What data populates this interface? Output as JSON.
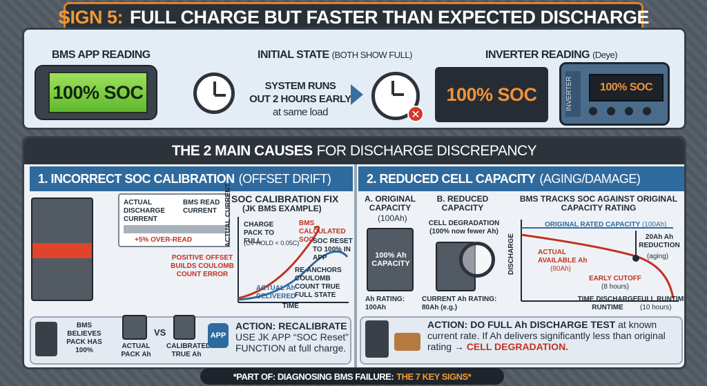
{
  "title": {
    "prefix": "SIGN 5:",
    "main": "FULL CHARGE BUT FASTER THAN EXPECTED DISCHARGE"
  },
  "top": {
    "bms_label": "BMS APP READING",
    "bms_value": "100% SOC",
    "initial_label": "INITIAL STATE",
    "initial_sub": "(BOTH SHOW FULL)",
    "runs_line1": "SYSTEM RUNS",
    "runs_line2": "OUT 2 HOURS EARLY",
    "runs_line3": "at same load",
    "inverter_label": "INVERTER READING",
    "inverter_sub": "(Deye)",
    "inverter_value": "100% SOC",
    "inverter_side": "INVERTER",
    "inverter_display": "100% SOC"
  },
  "causes": {
    "header_bold": "THE 2 MAIN CAUSES",
    "header_rest": "FOR DISCHARGE DISCREPANCY",
    "left": {
      "heading": "1. INCORRECT SOC CALIBRATION",
      "heading_sub": "(OFFSET DRIFT)",
      "actual_label": "ACTUAL DISCHARGE CURRENT",
      "read_label": "BMS READ CURRENT",
      "overread": "+5% OVER-READ",
      "positive": "POSITIVE OFFSET BUILDS COULOMB COUNT ERROR",
      "fix_title": "SOC CALIBRATION FIX",
      "fix_sub": "(JK BMS EXAMPLE)",
      "charge_pack": "CHARGE PACK TO FULL",
      "cv_hold": "(CV HOLD < 0.05C)",
      "bms_calc": "BMS CALCULATED SOC",
      "soc_reset": "SOC RESET TO 100% IN APP",
      "reanchor": "RE-ANCHORS COULOMB COUNT TRUE FULL STATE",
      "actual_ah": "ACTUAL Ah DELIVERED",
      "y_axis": "ACTUAL CURRENT",
      "x_axis": "TIME",
      "believes": "BMS BELIEVES PACK HAS 100%",
      "actual_pack": "ACTUAL PACK Ah",
      "vs": "VS",
      "calibrated": "CALIBRATED TRUE Ah",
      "app_icon": "APP",
      "action_bold": "ACTION: RECALIBRATE",
      "action_text": "USE JK APP “SOC Reset” FUNCTION at full charge."
    },
    "right": {
      "heading": "2. REDUCED CELL CAPACITY",
      "heading_sub": "(AGING/DAMAGE)",
      "a_title": "A. ORIGINAL CAPACITY",
      "a_sub": "(100Ah)",
      "a_cap": "100% Ah CAPACITY",
      "a_rating": "Ah RATING: 100Ah",
      "b_title": "B. REDUCED CAPACITY",
      "b_note": "CELL DEGRADATION (100% now fewer Ah)",
      "b_rating": "CURRENT Ah RATING: 80Ah (e.g.)",
      "chart_title": "BMS TRACKS SOC AGAINST ORIGINAL CAPACITY RATING",
      "orig_line": "ORIGINAL RATED CAPACITY",
      "orig_val": "(100Ah)",
      "reduction": "20Ah Ah REDUCTION",
      "reduction_sub": "(aging)",
      "actual_avail": "ACTUAL AVAILABLE Ah",
      "actual_val": "(80Ah)",
      "early": "EARLY CUTOFF",
      "early_val": "(8 hours)",
      "y_axis": "DISCHARGE",
      "x_axis": "TIME DISCHARGE RUNTIME",
      "full_runtime": "FULL RUNTIME",
      "full_val": "(10 hours)",
      "action_bold": "ACTION: DO FULL Ah DISCHARGE TEST",
      "action_text": "at known current rate. If Ah delivers significantly less than original rating →",
      "action_red": "CELL DEGRADATION."
    }
  },
  "footer": {
    "text": "*PART OF: DIAGNOSING BMS FAILURE:",
    "accent": "THE 7 KEY SIGNS*"
  }
}
